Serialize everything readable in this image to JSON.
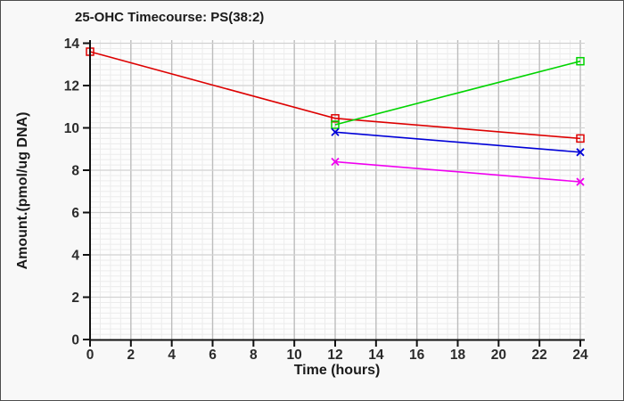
{
  "chart_data": {
    "type": "line",
    "title": "25-OHC Timecourse: PS(38:2)",
    "xlabel": "Time (hours)",
    "ylabel": "Amount.(pmol/ug DNA)",
    "xlim": [
      0,
      24.2
    ],
    "ylim": [
      0,
      14
    ],
    "xticks": [
      0,
      2,
      4,
      6,
      8,
      10,
      12,
      14,
      16,
      18,
      20,
      22,
      24
    ],
    "yticks": [
      0,
      2,
      4,
      6,
      8,
      10,
      12,
      14
    ],
    "grid": {
      "major": true,
      "minor": true,
      "minor_x_step": 0.5,
      "minor_y_step": 0.25
    },
    "legend": "none",
    "series": [
      {
        "name": "red",
        "color": "#dd0000",
        "marker": "square",
        "x": [
          0,
          12,
          24
        ],
        "y": [
          13.6,
          10.45,
          9.5
        ]
      },
      {
        "name": "green",
        "color": "#00d400",
        "marker": "square",
        "x": [
          12,
          24
        ],
        "y": [
          10.15,
          13.15
        ]
      },
      {
        "name": "blue",
        "color": "#0000d8",
        "marker": "x",
        "x": [
          12,
          24
        ],
        "y": [
          9.8,
          8.85
        ]
      },
      {
        "name": "magenta",
        "color": "#f000f0",
        "marker": "x",
        "x": [
          12,
          24
        ],
        "y": [
          8.4,
          7.45
        ]
      }
    ],
    "colors": {
      "plot_background": "#fdfdfd",
      "figure_background": "#f8f8f8",
      "major_grid_vertical": "#bdbdbd",
      "major_grid_horizontal": "#d2d2d2",
      "minor_grid": "#ececec",
      "axis": "#111111",
      "tick_label": "#2b2b2b"
    }
  }
}
